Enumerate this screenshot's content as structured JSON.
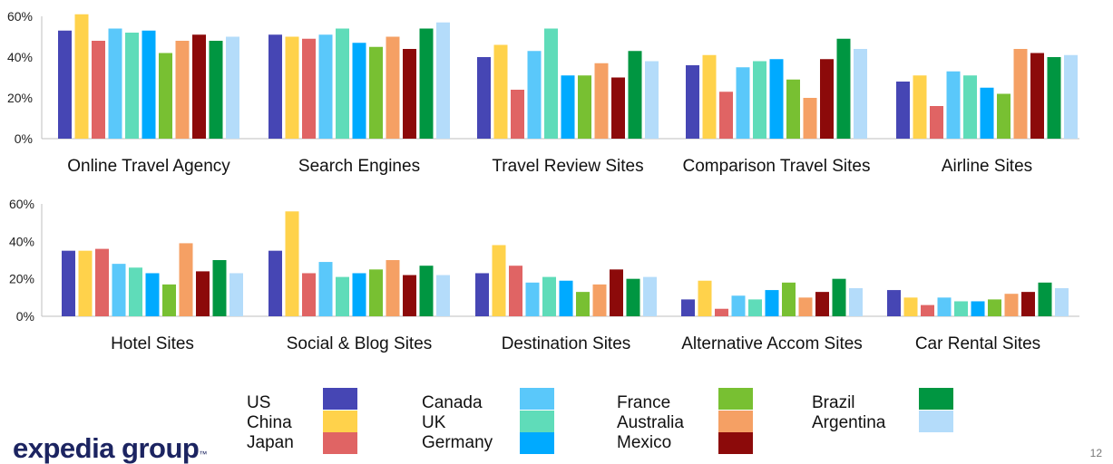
{
  "series_colors": [
    "#4646b4",
    "#ffd24b",
    "#e06464",
    "#5ac8fa",
    "#5fdcb9",
    "#00aaff",
    "#78c032",
    "#f5a064",
    "#8c0a0a",
    "#009641",
    "#b4dcfa"
  ],
  "chart_data": [
    {
      "type": "bar",
      "categories": [
        "Online Travel Agency",
        "Search Engines",
        "Travel Review Sites",
        "Comparison Travel Sites",
        "Airline Sites"
      ],
      "series": [
        {
          "name": "US",
          "values": [
            53,
            51,
            40,
            36,
            28
          ]
        },
        {
          "name": "China",
          "values": [
            61,
            50,
            46,
            41,
            31
          ]
        },
        {
          "name": "Japan",
          "values": [
            48,
            49,
            24,
            23,
            16
          ]
        },
        {
          "name": "Canada",
          "values": [
            54,
            51,
            43,
            35,
            33
          ]
        },
        {
          "name": "UK",
          "values": [
            52,
            54,
            54,
            38,
            31
          ]
        },
        {
          "name": "Germany",
          "values": [
            53,
            47,
            31,
            39,
            25
          ]
        },
        {
          "name": "France",
          "values": [
            42,
            45,
            31,
            29,
            22
          ]
        },
        {
          "name": "Australia",
          "values": [
            48,
            50,
            37,
            20,
            44
          ]
        },
        {
          "name": "Mexico",
          "values": [
            51,
            44,
            30,
            39,
            42
          ]
        },
        {
          "name": "Brazil",
          "values": [
            48,
            54,
            43,
            49,
            40
          ]
        },
        {
          "name": "Argentina",
          "values": [
            50,
            57,
            38,
            44,
            41
          ]
        }
      ],
      "yticks": [
        "0%",
        "20%",
        "40%",
        "60%"
      ],
      "ylim": [
        0,
        60
      ],
      "grid": false,
      "legend_position": "bottom"
    },
    {
      "type": "bar",
      "categories": [
        "Hotel Sites",
        "Social & Blog Sites",
        "Destination Sites",
        "Alternative Accom Sites",
        "Car Rental Sites"
      ],
      "series": [
        {
          "name": "US",
          "values": [
            35,
            35,
            23,
            9,
            14
          ]
        },
        {
          "name": "China",
          "values": [
            35,
            56,
            38,
            19,
            10
          ]
        },
        {
          "name": "Japan",
          "values": [
            36,
            23,
            27,
            4,
            6
          ]
        },
        {
          "name": "Canada",
          "values": [
            28,
            29,
            18,
            11,
            10
          ]
        },
        {
          "name": "UK",
          "values": [
            26,
            21,
            21,
            9,
            8
          ]
        },
        {
          "name": "Germany",
          "values": [
            23,
            23,
            19,
            14,
            8
          ]
        },
        {
          "name": "France",
          "values": [
            17,
            25,
            13,
            18,
            9
          ]
        },
        {
          "name": "Australia",
          "values": [
            39,
            30,
            17,
            10,
            12
          ]
        },
        {
          "name": "Mexico",
          "values": [
            24,
            22,
            25,
            13,
            13
          ]
        },
        {
          "name": "Brazil",
          "values": [
            30,
            27,
            20,
            20,
            18
          ]
        },
        {
          "name": "Argentina",
          "values": [
            23,
            22,
            21,
            15,
            15
          ]
        }
      ],
      "yticks": [
        "0%",
        "20%",
        "40%",
        "60%"
      ],
      "ylim": [
        0,
        60
      ],
      "grid": false,
      "legend_position": "bottom"
    }
  ],
  "legend": {
    "items": [
      "US",
      "China",
      "Japan",
      "Canada",
      "UK",
      "Germany",
      "France",
      "Australia",
      "Mexico",
      "Brazil",
      "Argentina"
    ]
  },
  "logo": {
    "text": "expedia group",
    "mark": "™"
  },
  "page_number": "12"
}
